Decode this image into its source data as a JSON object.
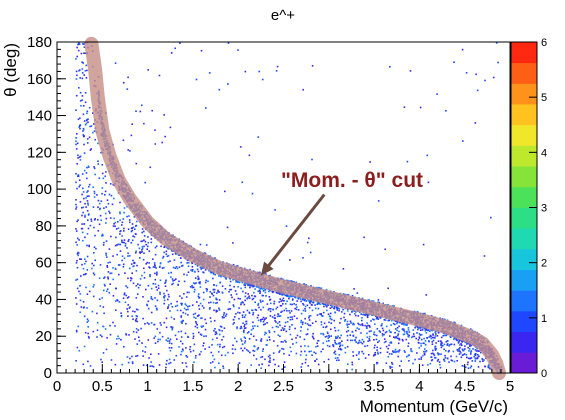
{
  "chart_data": {
    "type": "heatmap",
    "title": "e^+",
    "xlabel": "Momentum (GeV/c)",
    "ylabel": "θ (deg)",
    "xlim": [
      0,
      5
    ],
    "ylim": [
      0,
      180
    ],
    "zlim": [
      0,
      6
    ],
    "x_ticks": [
      {
        "value": 0,
        "label": "0"
      },
      {
        "value": 0.5,
        "label": "0.5"
      },
      {
        "value": 1,
        "label": "1"
      },
      {
        "value": 1.5,
        "label": "1.5"
      },
      {
        "value": 2,
        "label": "2"
      },
      {
        "value": 2.5,
        "label": "2.5"
      },
      {
        "value": 3,
        "label": "3"
      },
      {
        "value": 3.5,
        "label": "3.5"
      },
      {
        "value": 4,
        "label": "4"
      },
      {
        "value": 4.5,
        "label": "4.5"
      },
      {
        "value": 5,
        "label": "5"
      }
    ],
    "y_ticks": [
      {
        "value": 0,
        "label": "0"
      },
      {
        "value": 20,
        "label": "20"
      },
      {
        "value": 40,
        "label": "40"
      },
      {
        "value": 60,
        "label": "60"
      },
      {
        "value": 80,
        "label": "80"
      },
      {
        "value": 100,
        "label": "100"
      },
      {
        "value": 120,
        "label": "120"
      },
      {
        "value": 140,
        "label": "140"
      },
      {
        "value": 160,
        "label": "160"
      },
      {
        "value": 180,
        "label": "180"
      }
    ],
    "z_ticks": [
      {
        "value": 0,
        "label": "0"
      },
      {
        "value": 1,
        "label": "1"
      },
      {
        "value": 2,
        "label": "2"
      },
      {
        "value": 3,
        "label": "3"
      },
      {
        "value": 4,
        "label": "4"
      },
      {
        "value": 5,
        "label": "5"
      },
      {
        "value": 6,
        "label": "6"
      }
    ],
    "palette": [
      "#6a1bd6",
      "#3a26f0",
      "#1f47ff",
      "#1c74ff",
      "#19a0f5",
      "#17c6dd",
      "#1fd9b3",
      "#2cdf86",
      "#4be25a",
      "#86e33a",
      "#bde82c",
      "#f0e62a",
      "#ffc21f",
      "#ff921a",
      "#ff5f14",
      "#ff2810"
    ],
    "cut_band": {
      "label": "\"Mom. - θ\" cut",
      "color": "#c58d86",
      "label_color": "#8b1e1e",
      "curve": [
        {
          "x": 0.38,
          "y": 179
        },
        {
          "x": 0.42,
          "y": 165
        },
        {
          "x": 0.45,
          "y": 150
        },
        {
          "x": 0.5,
          "y": 132
        },
        {
          "x": 0.58,
          "y": 118
        },
        {
          "x": 0.68,
          "y": 105
        },
        {
          "x": 0.8,
          "y": 95
        },
        {
          "x": 1.0,
          "y": 82
        },
        {
          "x": 1.2,
          "y": 73
        },
        {
          "x": 1.5,
          "y": 64
        },
        {
          "x": 1.8,
          "y": 57
        },
        {
          "x": 2.0,
          "y": 54
        },
        {
          "x": 2.5,
          "y": 47
        },
        {
          "x": 3.0,
          "y": 41
        },
        {
          "x": 3.5,
          "y": 35
        },
        {
          "x": 4.0,
          "y": 29
        },
        {
          "x": 4.3,
          "y": 25
        },
        {
          "x": 4.5,
          "y": 21
        },
        {
          "x": 4.6,
          "y": 19
        },
        {
          "x": 4.7,
          "y": 16
        },
        {
          "x": 4.8,
          "y": 10
        },
        {
          "x": 4.85,
          "y": 5
        },
        {
          "x": 4.88,
          "y": 0
        }
      ],
      "arrow": {
        "from": {
          "x": 2.95,
          "y": 97
        },
        "to": {
          "x": 2.25,
          "y": 53
        }
      }
    }
  }
}
